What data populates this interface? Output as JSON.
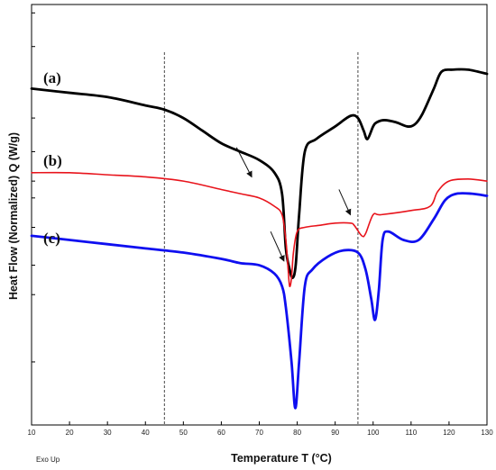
{
  "chart_data": {
    "type": "line",
    "xlabel": "Temperature  T  (°C)",
    "ylabel": "Heat Flow (Normalized)  Q  (W/g)",
    "xlim": [
      10,
      130
    ],
    "ylim": [
      0,
      100
    ],
    "x_ticks": [
      "10",
      "20",
      "30",
      "40",
      "50",
      "60",
      "70",
      "80",
      "90",
      "100",
      "110",
      "120",
      "130"
    ],
    "exo_label": "Exo Up",
    "reference_lines_x": [
      45,
      96
    ],
    "series": [
      {
        "name": "(a)",
        "color": "#000000",
        "points": [
          [
            10,
            80
          ],
          [
            20,
            79
          ],
          [
            30,
            78
          ],
          [
            40,
            76
          ],
          [
            45,
            75
          ],
          [
            50,
            73
          ],
          [
            55,
            70
          ],
          [
            60,
            67
          ],
          [
            65,
            65
          ],
          [
            70,
            63
          ],
          [
            74,
            60
          ],
          [
            76,
            55
          ],
          [
            77,
            42
          ],
          [
            78,
            37
          ],
          [
            78.8,
            35
          ],
          [
            79.6,
            38
          ],
          [
            80.5,
            50
          ],
          [
            82,
            65
          ],
          [
            85,
            68
          ],
          [
            90,
            71
          ],
          [
            94,
            73.5
          ],
          [
            96,
            73
          ],
          [
            97.5,
            70
          ],
          [
            98.5,
            68
          ],
          [
            100,
            71
          ],
          [
            101,
            72
          ],
          [
            103,
            72.5
          ],
          [
            106,
            72
          ],
          [
            109,
            71
          ],
          [
            111,
            71.5
          ],
          [
            113,
            74
          ],
          [
            116,
            80
          ],
          [
            118,
            84
          ],
          [
            121,
            84.5
          ],
          [
            125,
            84.5
          ],
          [
            130,
            83.5
          ]
        ]
      },
      {
        "name": "(b)",
        "color": "#e8141c",
        "points": [
          [
            10,
            60
          ],
          [
            20,
            60
          ],
          [
            30,
            59.5
          ],
          [
            40,
            59
          ],
          [
            50,
            58
          ],
          [
            60,
            56
          ],
          [
            65,
            55
          ],
          [
            70,
            54
          ],
          [
            74,
            52
          ],
          [
            76,
            50
          ],
          [
            77,
            44
          ],
          [
            77.6,
            37
          ],
          [
            78,
            33
          ],
          [
            78.5,
            35
          ],
          [
            79,
            41
          ],
          [
            80,
            46
          ],
          [
            82,
            47
          ],
          [
            86,
            47.5
          ],
          [
            90,
            48
          ],
          [
            94,
            48
          ],
          [
            95,
            47.5
          ],
          [
            97,
            45
          ],
          [
            98,
            45.5
          ],
          [
            100,
            50
          ],
          [
            102,
            50
          ],
          [
            110,
            51
          ],
          [
            115,
            52
          ],
          [
            117,
            55.5
          ],
          [
            120,
            58
          ],
          [
            125,
            58.5
          ],
          [
            130,
            58
          ]
        ]
      },
      {
        "name": "(c)",
        "color": "#0f0ff0",
        "points": [
          [
            10,
            45
          ],
          [
            20,
            44
          ],
          [
            30,
            43
          ],
          [
            40,
            42
          ],
          [
            50,
            41
          ],
          [
            60,
            39.5
          ],
          [
            65,
            38.5
          ],
          [
            70,
            38
          ],
          [
            74,
            36
          ],
          [
            76,
            33
          ],
          [
            77,
            28
          ],
          [
            78.5,
            15
          ],
          [
            79.5,
            4
          ],
          [
            80.5,
            15
          ],
          [
            82,
            33
          ],
          [
            84,
            37
          ],
          [
            88,
            40
          ],
          [
            92,
            41.5
          ],
          [
            96,
            41
          ],
          [
            98,
            37
          ],
          [
            99.5,
            30
          ],
          [
            100.5,
            25
          ],
          [
            101.5,
            32
          ],
          [
            102.5,
            44
          ],
          [
            104,
            46
          ],
          [
            108,
            44
          ],
          [
            112,
            44
          ],
          [
            116,
            49
          ],
          [
            119,
            53.5
          ],
          [
            122,
            55
          ],
          [
            126,
            55
          ],
          [
            130,
            54.5
          ]
        ]
      }
    ],
    "annotations": [
      {
        "type": "arrow",
        "from": [
          64,
          66
        ],
        "to": [
          68,
          59
        ],
        "label": ""
      },
      {
        "type": "arrow",
        "from": [
          91,
          56
        ],
        "to": [
          94,
          50
        ],
        "label": ""
      },
      {
        "type": "arrow",
        "from": [
          73,
          46
        ],
        "to": [
          76.5,
          39
        ],
        "label": ""
      }
    ]
  }
}
